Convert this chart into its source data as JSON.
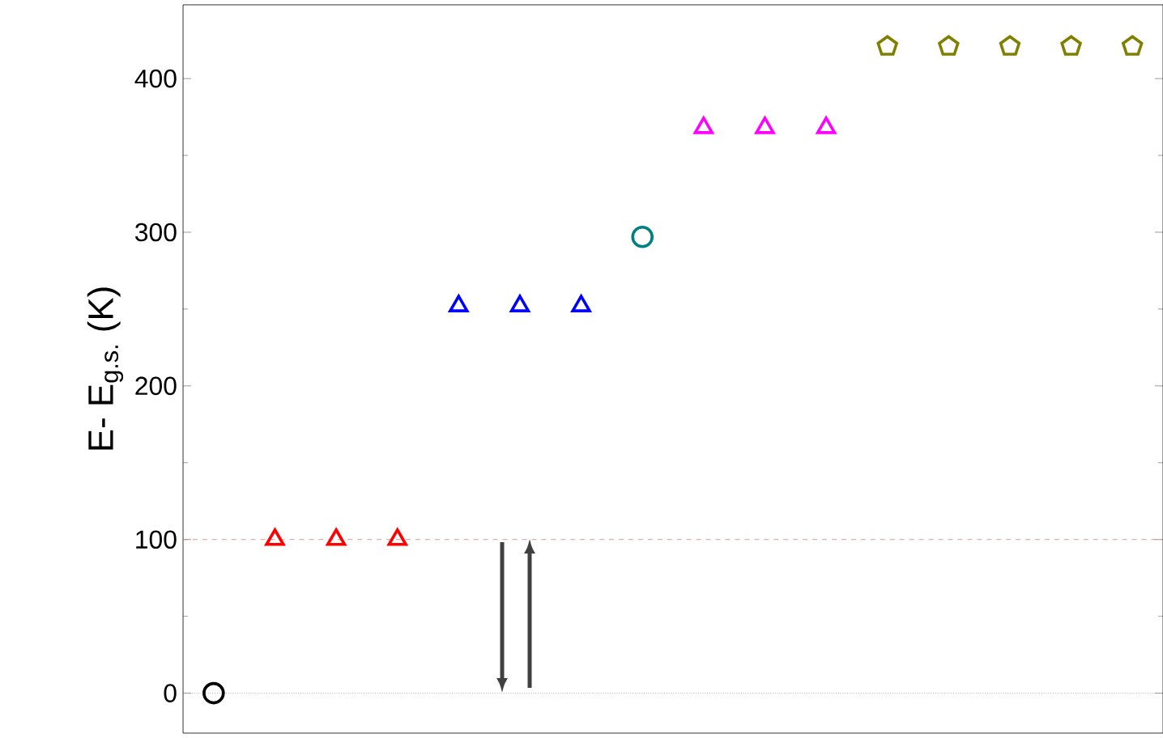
{
  "chart_data": {
    "type": "scatter",
    "ylabel": "E- E$_{g.s.}$ (K)",
    "categories": [
      null,
      null,
      null,
      null,
      null,
      null,
      null,
      null,
      null,
      null,
      null,
      null,
      null,
      null,
      null,
      null
    ],
    "ylim": [
      -26,
      448
    ],
    "yticks": [
      0,
      100,
      200,
      300,
      400
    ],
    "series": [
      {
        "color": "#000000",
        "marker": "circle",
        "values": [
          0,
          null,
          null,
          null,
          null,
          null,
          null,
          null,
          null,
          null,
          null,
          null,
          null,
          null,
          null,
          null
        ]
      },
      {
        "color": "#ff0000",
        "marker": "triangle",
        "values": [
          null,
          100,
          100,
          100,
          null,
          null,
          null,
          null,
          null,
          null,
          null,
          null,
          null,
          null,
          null,
          null
        ]
      },
      {
        "color": "#0000ff",
        "marker": "triangle",
        "values": [
          null,
          null,
          null,
          null,
          252,
          252,
          252,
          null,
          null,
          null,
          null,
          null,
          null,
          null,
          null,
          null
        ]
      },
      {
        "color": "#008080",
        "marker": "circle",
        "values": [
          null,
          null,
          null,
          null,
          null,
          null,
          null,
          297,
          null,
          null,
          null,
          null,
          null,
          null,
          null,
          null
        ]
      },
      {
        "color": "#ff00ff",
        "marker": "triangle",
        "values": [
          null,
          null,
          null,
          null,
          null,
          null,
          null,
          null,
          368,
          368,
          368,
          null,
          null,
          null,
          null,
          null
        ]
      },
      {
        "color": "#808000",
        "values": [
          null,
          null,
          null,
          null,
          null,
          null,
          null,
          null,
          null,
          null,
          null,
          421,
          421,
          421,
          421,
          421
        ]
      }
    ],
    "ref_lines": [
      {
        "axis": "y",
        "value": 0,
        "color": "#808080",
        "line_style": "dotted"
      },
      {
        "axis": "y",
        "value": 100,
        "color": "#d08080",
        "line_style": "dashed"
      }
    ]
  }
}
